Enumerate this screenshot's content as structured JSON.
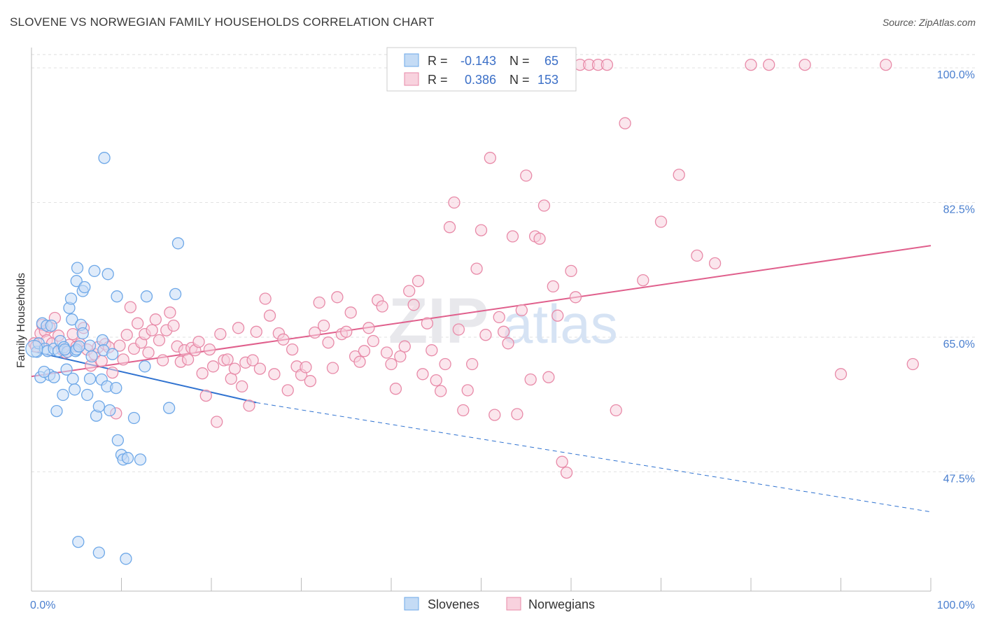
{
  "title": "SLOVENE VS NORWEGIAN FAMILY HOUSEHOLDS CORRELATION CHART",
  "source": "Source: ZipAtlas.com",
  "watermark": [
    "ZIP",
    "atlas"
  ],
  "colors": {
    "slovenes": "#6ea8e8",
    "slovenes_fill": "#c4dbf5",
    "slovenes_line": "#2f72d0",
    "norwegians": "#e88aa8",
    "norwegians_fill": "#f8d2de",
    "norwegians_line": "#e05f8c",
    "axis_text": "#4a7fcf"
  },
  "legend": {
    "r_label": "R =",
    "n_label": "N =",
    "rows": [
      {
        "r": "-0.143",
        "n": "65"
      },
      {
        "r": "0.386",
        "n": "153"
      }
    ]
  },
  "bottom_legend": [
    "Slovenes",
    "Norwegians"
  ],
  "chart_data": {
    "type": "scatter",
    "title": "SLOVENE VS NORWEGIAN FAMILY HOUSEHOLDS CORRELATION CHART",
    "xlabel": "",
    "ylabel": "Family Households",
    "xlim": [
      0,
      100
    ],
    "ylim": [
      32,
      100
    ],
    "x_tick_labels": [
      "0.0%",
      "100.0%"
    ],
    "y_ticks": [
      47.5,
      65.0,
      82.5,
      100.0
    ],
    "y_tick_labels": [
      "47.5%",
      "65.0%",
      "82.5%",
      "100.0%"
    ],
    "grid": "horizontal dashed",
    "legend_position": "top-center",
    "series": [
      {
        "name": "Slovenes",
        "trend": {
          "x0": 0,
          "y0": 63.2,
          "x1": 25,
          "y1": 56.5,
          "dashed_to": [
            100,
            42.3
          ]
        },
        "points": [
          [
            0.6,
            63.1
          ],
          [
            0.8,
            64.2
          ],
          [
            1.0,
            59.8
          ],
          [
            1.2,
            66.8
          ],
          [
            1.5,
            63.5
          ],
          [
            1.7,
            66.5
          ],
          [
            1.8,
            63.2
          ],
          [
            2.0,
            60.1
          ],
          [
            2.2,
            66.5
          ],
          [
            2.5,
            59.8
          ],
          [
            2.5,
            63.5
          ],
          [
            2.8,
            55.4
          ],
          [
            3.0,
            63.2
          ],
          [
            3.2,
            64.5
          ],
          [
            3.5,
            57.5
          ],
          [
            3.6,
            63.7
          ],
          [
            3.9,
            60.8
          ],
          [
            4.0,
            63.1
          ],
          [
            4.2,
            68.8
          ],
          [
            4.4,
            70.0
          ],
          [
            4.5,
            67.3
          ],
          [
            4.6,
            59.6
          ],
          [
            4.8,
            58.2
          ],
          [
            4.9,
            63.2
          ],
          [
            5.0,
            72.3
          ],
          [
            5.0,
            63.4
          ],
          [
            5.1,
            74.0
          ],
          [
            5.3,
            63.8
          ],
          [
            5.5,
            66.6
          ],
          [
            5.7,
            71.0
          ],
          [
            5.7,
            65.5
          ],
          [
            5.9,
            71.5
          ],
          [
            6.2,
            57.5
          ],
          [
            6.5,
            63.9
          ],
          [
            6.5,
            59.6
          ],
          [
            6.7,
            62.5
          ],
          [
            7.0,
            73.6
          ],
          [
            7.2,
            54.8
          ],
          [
            7.5,
            56.0
          ],
          [
            7.8,
            59.5
          ],
          [
            7.9,
            64.6
          ],
          [
            8.0,
            63.3
          ],
          [
            8.1,
            88.3
          ],
          [
            8.4,
            58.6
          ],
          [
            8.5,
            73.2
          ],
          [
            8.7,
            55.5
          ],
          [
            9.4,
            58.4
          ],
          [
            9.5,
            70.3
          ],
          [
            9.6,
            51.6
          ],
          [
            10.0,
            49.7
          ],
          [
            10.2,
            49.1
          ],
          [
            10.7,
            49.3
          ],
          [
            11.4,
            54.5
          ],
          [
            12.1,
            49.1
          ],
          [
            12.6,
            61.2
          ],
          [
            12.8,
            70.3
          ],
          [
            15.3,
            55.8
          ],
          [
            16.0,
            70.6
          ],
          [
            16.3,
            77.2
          ],
          [
            5.2,
            38.4
          ],
          [
            7.5,
            37.0
          ],
          [
            10.5,
            36.2
          ],
          [
            9.0,
            62.8
          ],
          [
            1.4,
            60.5
          ],
          [
            3.7,
            63.4
          ]
        ]
      },
      {
        "name": "Norwegians",
        "trend": {
          "x0": 0,
          "y0": 59.9,
          "x1": 100,
          "y1": 76.9
        },
        "points": [
          [
            0.3,
            64.2
          ],
          [
            0.5,
            63.8
          ],
          [
            1.0,
            65.5
          ],
          [
            1.2,
            66.6
          ],
          [
            1.5,
            65.8
          ],
          [
            1.7,
            64.6
          ],
          [
            2.0,
            66.3
          ],
          [
            2.3,
            64.2
          ],
          [
            2.6,
            67.5
          ],
          [
            3.0,
            65.2
          ],
          [
            3.4,
            63.4
          ],
          [
            3.8,
            63.0
          ],
          [
            4.2,
            64.0
          ],
          [
            4.6,
            65.4
          ],
          [
            5.0,
            63.8
          ],
          [
            5.4,
            64.1
          ],
          [
            5.8,
            66.2
          ],
          [
            6.2,
            63.4
          ],
          [
            6.6,
            61.3
          ],
          [
            7.0,
            62.8
          ],
          [
            7.4,
            63.7
          ],
          [
            7.8,
            61.9
          ],
          [
            8.2,
            64.1
          ],
          [
            8.6,
            63.7
          ],
          [
            9.0,
            60.4
          ],
          [
            9.4,
            55.1
          ],
          [
            9.8,
            63.9
          ],
          [
            10.2,
            62.1
          ],
          [
            10.6,
            65.3
          ],
          [
            11.0,
            68.9
          ],
          [
            11.4,
            63.5
          ],
          [
            11.8,
            66.8
          ],
          [
            12.2,
            64.3
          ],
          [
            12.6,
            65.4
          ],
          [
            13.0,
            63.0
          ],
          [
            13.4,
            65.9
          ],
          [
            13.8,
            67.3
          ],
          [
            14.2,
            64.6
          ],
          [
            14.6,
            62.0
          ],
          [
            15.0,
            65.9
          ],
          [
            15.4,
            68.2
          ],
          [
            15.8,
            66.5
          ],
          [
            16.2,
            63.8
          ],
          [
            16.6,
            61.8
          ],
          [
            17.0,
            63.3
          ],
          [
            17.4,
            62.1
          ],
          [
            17.8,
            63.6
          ],
          [
            18.2,
            63.3
          ],
          [
            18.6,
            64.4
          ],
          [
            19.0,
            60.3
          ],
          [
            19.4,
            57.4
          ],
          [
            19.8,
            63.4
          ],
          [
            20.2,
            61.2
          ],
          [
            20.6,
            54.0
          ],
          [
            21.0,
            65.4
          ],
          [
            21.4,
            62.0
          ],
          [
            21.8,
            62.1
          ],
          [
            22.2,
            59.6
          ],
          [
            22.6,
            60.9
          ],
          [
            23.0,
            66.2
          ],
          [
            23.4,
            58.6
          ],
          [
            23.8,
            61.7
          ],
          [
            24.2,
            56.1
          ],
          [
            24.6,
            62.0
          ],
          [
            25.0,
            65.7
          ],
          [
            25.4,
            60.9
          ],
          [
            26.0,
            70.0
          ],
          [
            26.5,
            67.8
          ],
          [
            27.0,
            60.2
          ],
          [
            27.5,
            65.5
          ],
          [
            28.0,
            64.7
          ],
          [
            28.5,
            58.1
          ],
          [
            29.0,
            63.4
          ],
          [
            29.5,
            61.2
          ],
          [
            30.0,
            60.1
          ],
          [
            30.5,
            61.1
          ],
          [
            31.0,
            59.3
          ],
          [
            31.5,
            65.6
          ],
          [
            32.0,
            69.5
          ],
          [
            32.5,
            66.5
          ],
          [
            33.0,
            64.3
          ],
          [
            33.5,
            61.0
          ],
          [
            34.0,
            70.2
          ],
          [
            34.5,
            65.4
          ],
          [
            35.0,
            65.7
          ],
          [
            35.5,
            68.2
          ],
          [
            36.0,
            62.5
          ],
          [
            36.5,
            61.8
          ],
          [
            37.0,
            63.2
          ],
          [
            37.5,
            66.2
          ],
          [
            38.0,
            64.5
          ],
          [
            38.5,
            69.8
          ],
          [
            39.0,
            69.0
          ],
          [
            39.5,
            63.0
          ],
          [
            40.0,
            61.5
          ],
          [
            40.5,
            58.3
          ],
          [
            41.0,
            62.5
          ],
          [
            41.5,
            63.8
          ],
          [
            42.0,
            71.0
          ],
          [
            42.5,
            69.2
          ],
          [
            43.0,
            72.3
          ],
          [
            43.5,
            60.2
          ],
          [
            44.0,
            66.8
          ],
          [
            44.5,
            63.3
          ],
          [
            45.0,
            59.4
          ],
          [
            45.5,
            58.0
          ],
          [
            46.0,
            61.5
          ],
          [
            46.5,
            79.3
          ],
          [
            47.0,
            82.5
          ],
          [
            47.5,
            66.0
          ],
          [
            48.0,
            55.5
          ],
          [
            48.5,
            58.1
          ],
          [
            49.0,
            61.5
          ],
          [
            49.5,
            73.9
          ],
          [
            50.0,
            78.9
          ],
          [
            50.5,
            65.3
          ],
          [
            51.0,
            88.3
          ],
          [
            51.5,
            54.9
          ],
          [
            52.0,
            67.6
          ],
          [
            52.5,
            65.7
          ],
          [
            53.0,
            64.2
          ],
          [
            53.5,
            78.1
          ],
          [
            54.0,
            55.0
          ],
          [
            54.5,
            68.5
          ],
          [
            55.0,
            86.0
          ],
          [
            55.5,
            59.5
          ],
          [
            56.0,
            78.1
          ],
          [
            56.5,
            77.8
          ],
          [
            57.0,
            82.1
          ],
          [
            57.5,
            59.8
          ],
          [
            58.0,
            71.6
          ],
          [
            58.5,
            67.8
          ],
          [
            59.0,
            48.8
          ],
          [
            59.5,
            47.4
          ],
          [
            60.0,
            73.6
          ],
          [
            60.5,
            70.2
          ],
          [
            61.0,
            100.4
          ],
          [
            62.0,
            100.4
          ],
          [
            63.0,
            100.4
          ],
          [
            64.0,
            100.4
          ],
          [
            65.0,
            55.5
          ],
          [
            66.0,
            92.8
          ],
          [
            68.0,
            72.4
          ],
          [
            70.0,
            80.0
          ],
          [
            72.0,
            86.1
          ],
          [
            74.0,
            75.6
          ],
          [
            76.0,
            74.6
          ],
          [
            80.0,
            100.4
          ],
          [
            82.0,
            100.4
          ],
          [
            86.0,
            100.4
          ],
          [
            90.0,
            60.2
          ],
          [
            95.0,
            100.4
          ],
          [
            98.0,
            61.5
          ]
        ]
      }
    ]
  }
}
